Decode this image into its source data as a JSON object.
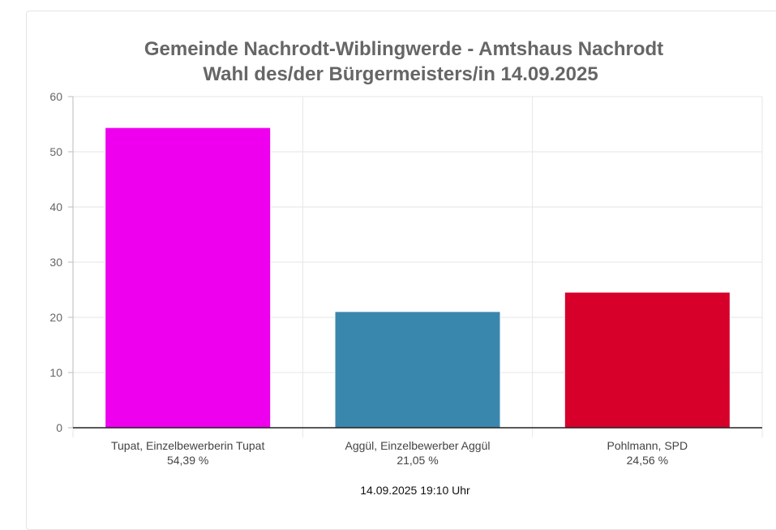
{
  "chart_data": {
    "type": "bar",
    "title": [
      "Gemeinde Nachrodt-Wiblingwerde - Amtshaus Nachrodt",
      "Wahl des/der Bürgermeisters/in 14.09.2025"
    ],
    "categories": [
      "Tupat, Einzelbewerberin Tupat",
      "Aggül, Einzelbewerber Aggül",
      "Pohlmann, SPD"
    ],
    "value_labels": [
      "54,39 %",
      "21,05 %",
      "24,56 %"
    ],
    "values": [
      54.39,
      21.05,
      24.56
    ],
    "colors": [
      "#ee00ee",
      "#3a87ad",
      "#d6002a"
    ],
    "ylim": [
      0,
      60
    ],
    "yticks": [
      0,
      10,
      20,
      30,
      40,
      50,
      60
    ],
    "xlabel": "",
    "ylabel": "",
    "grid": true,
    "legend": "none"
  },
  "footer": {
    "timestamp": "14.09.2025 19:10 Uhr"
  }
}
